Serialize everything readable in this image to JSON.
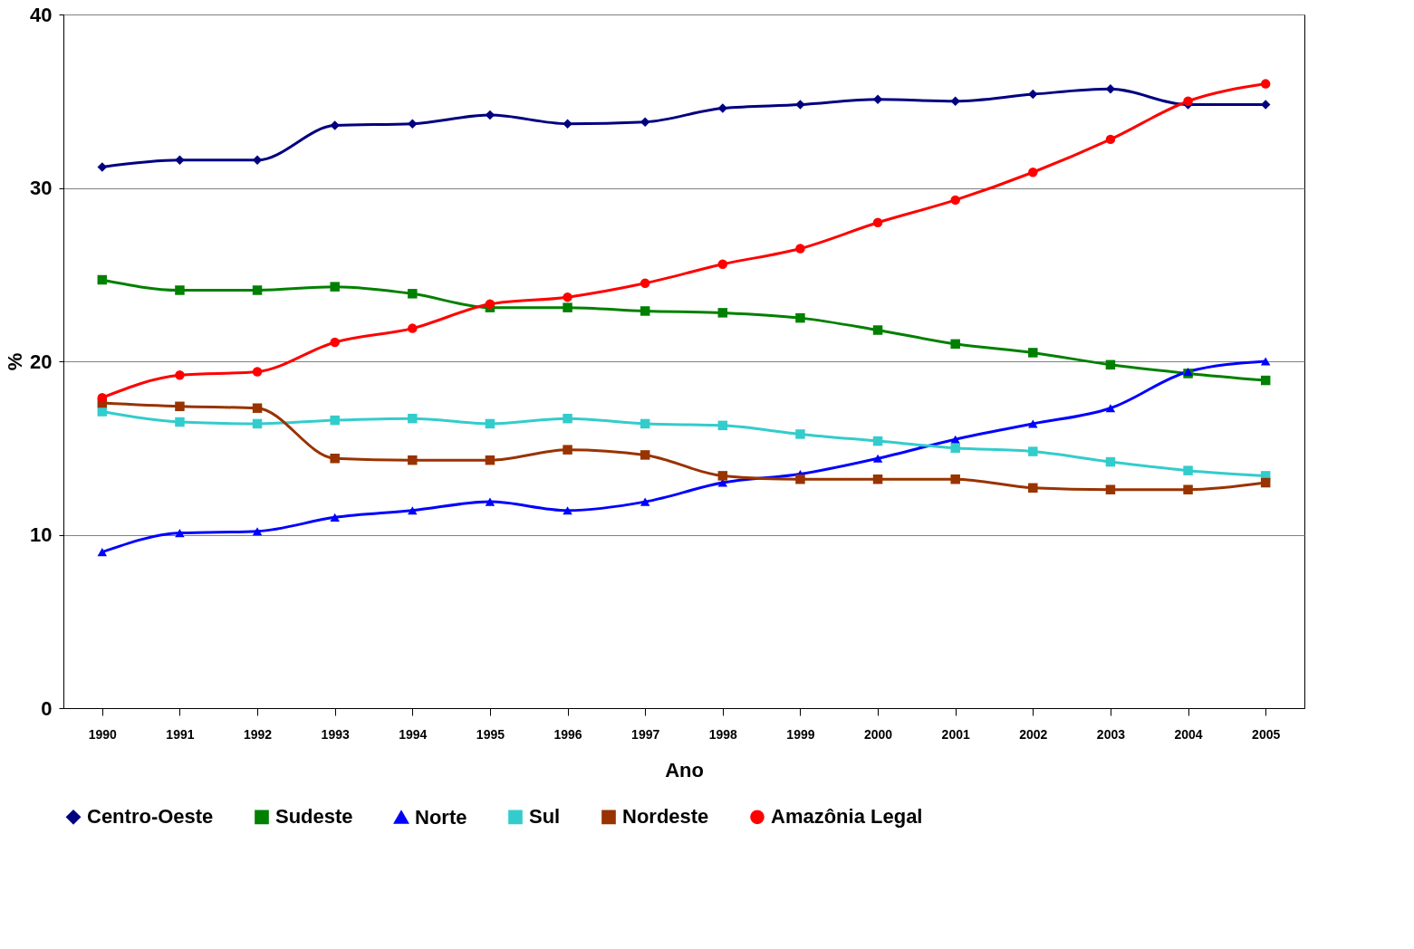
{
  "chart_data": {
    "type": "line",
    "xlabel": "Ano",
    "ylabel": "%",
    "categories": [
      "1990",
      "1991",
      "1992",
      "1993",
      "1994",
      "1995",
      "1996",
      "1997",
      "1998",
      "1999",
      "2000",
      "2001",
      "2002",
      "2003",
      "2004",
      "2005"
    ],
    "series": [
      {
        "name": "Centro-Oeste",
        "color": "#000080",
        "marker": "diamond",
        "values": [
          31.2,
          31.6,
          31.6,
          33.6,
          33.7,
          34.2,
          33.7,
          33.8,
          34.6,
          34.8,
          35.1,
          35.0,
          35.4,
          35.7,
          34.8,
          34.8
        ]
      },
      {
        "name": "Sudeste",
        "color": "#008000",
        "marker": "square",
        "values": [
          24.7,
          24.1,
          24.1,
          24.3,
          23.9,
          23.1,
          23.1,
          22.9,
          22.8,
          22.5,
          21.8,
          21.0,
          20.5,
          19.8,
          19.3,
          18.9
        ]
      },
      {
        "name": "Norte",
        "color": "#0000ff",
        "marker": "triangle",
        "values": [
          9.0,
          10.1,
          10.2,
          11.0,
          11.4,
          11.9,
          11.4,
          11.9,
          13.0,
          13.5,
          14.4,
          15.5,
          16.4,
          17.3,
          19.4,
          20.0
        ]
      },
      {
        "name": "Sul",
        "color": "#33cccc",
        "marker": "square",
        "values": [
          17.1,
          16.5,
          16.4,
          16.6,
          16.7,
          16.4,
          16.7,
          16.4,
          16.3,
          15.8,
          15.4,
          15.0,
          14.8,
          14.2,
          13.7,
          13.4
        ]
      },
      {
        "name": "Nordeste",
        "color": "#993300",
        "marker": "square",
        "values": [
          17.6,
          17.4,
          17.3,
          14.4,
          14.3,
          14.3,
          14.9,
          14.6,
          13.4,
          13.2,
          13.2,
          13.2,
          12.7,
          12.6,
          12.6,
          13.0
        ]
      },
      {
        "name": "Amazônia Legal",
        "color": "#ff0000",
        "marker": "circle",
        "values": [
          17.9,
          19.2,
          19.4,
          21.1,
          21.9,
          23.3,
          23.7,
          24.5,
          25.6,
          26.5,
          28.0,
          29.3,
          30.9,
          32.8,
          35.0,
          36.0
        ]
      }
    ],
    "ylim": [
      0,
      40
    ],
    "yticks": [
      0,
      10,
      20,
      30,
      40
    ],
    "grid": "y",
    "legend": "bottom",
    "line_style": "solid"
  }
}
